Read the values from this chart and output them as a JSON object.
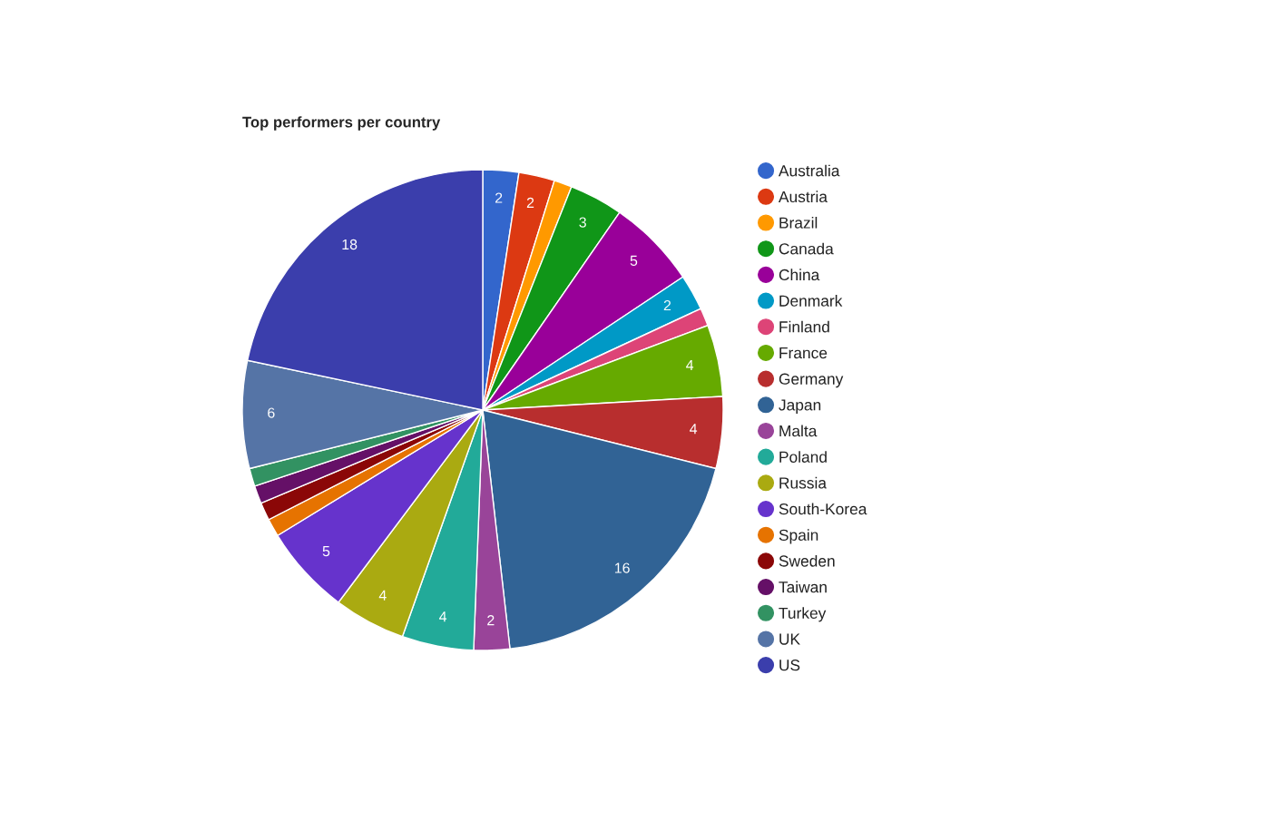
{
  "chart_data": {
    "type": "pie",
    "title": "Top performers per country",
    "categories": [
      "Australia",
      "Austria",
      "Brazil",
      "Canada",
      "China",
      "Denmark",
      "Finland",
      "France",
      "Germany",
      "Japan",
      "Malta",
      "Poland",
      "Russia",
      "South-Korea",
      "Spain",
      "Sweden",
      "Taiwan",
      "Turkey",
      "UK",
      "US"
    ],
    "values": [
      2,
      2,
      1,
      3,
      5,
      2,
      1,
      4,
      4,
      16,
      2,
      4,
      4,
      5,
      1,
      1,
      1,
      1,
      6,
      18
    ],
    "value_labels": [
      "2",
      "2",
      null,
      "3",
      "5",
      "2",
      null,
      "4",
      "4",
      "16",
      "2",
      "4",
      "4",
      "5",
      null,
      null,
      null,
      null,
      "6",
      "18"
    ],
    "colors": [
      "#3366cc",
      "#dc3912",
      "#ff9900",
      "#109618",
      "#990099",
      "#0099c6",
      "#dd4477",
      "#66aa00",
      "#b82e2e",
      "#316395",
      "#994499",
      "#22aa99",
      "#aaaa11",
      "#6633cc",
      "#e67300",
      "#8b0707",
      "#651067",
      "#329262",
      "#5574a6",
      "#3b3eac"
    ],
    "legend": "right"
  }
}
